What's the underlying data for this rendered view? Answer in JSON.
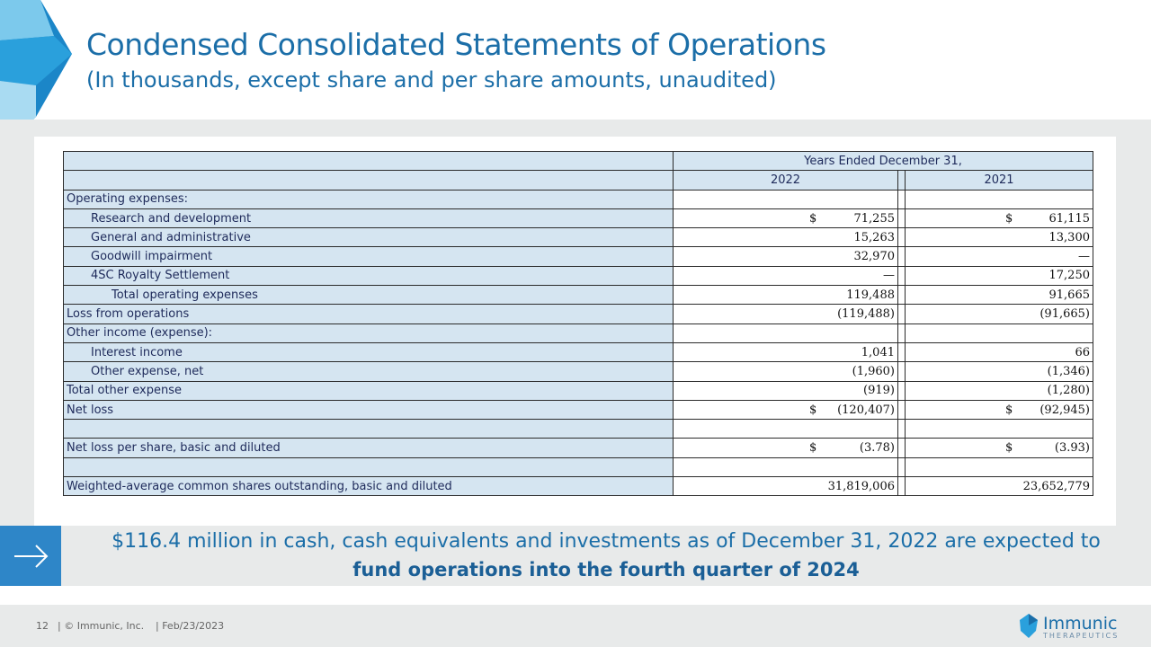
{
  "header": {
    "title": "Condensed Consolidated Statements of Operations",
    "subtitle": "(In thousands, except share and per share amounts, unaudited)"
  },
  "table": {
    "period_header": "Years Ended December 31,",
    "columns": [
      "2022",
      "2021"
    ],
    "rows": [
      {
        "label": "Operating expenses:"
      },
      {
        "label": "Research and development",
        "values": [
          {
            "currency": "$",
            "amount": "71,255"
          },
          {
            "currency": "$",
            "amount": "61,115"
          }
        ]
      },
      {
        "label": "General and administrative",
        "values": [
          {
            "amount": "15,263"
          },
          {
            "amount": "13,300"
          }
        ]
      },
      {
        "label": "Goodwill impairment",
        "values": [
          {
            "amount": "32,970"
          },
          {
            "amount": "—"
          }
        ]
      },
      {
        "label": "4SC Royalty Settlement",
        "values": [
          {
            "amount": "—"
          },
          {
            "amount": "17,250"
          }
        ]
      },
      {
        "label": "Total operating expenses",
        "values": [
          {
            "amount": "119,488"
          },
          {
            "amount": "91,665"
          }
        ]
      },
      {
        "label": "Loss from operations",
        "values": [
          {
            "amount": "(119,488)"
          },
          {
            "amount": "(91,665)"
          }
        ]
      },
      {
        "label": "Other income (expense):"
      },
      {
        "label": "Interest income",
        "values": [
          {
            "amount": "1,041"
          },
          {
            "amount": "66"
          }
        ]
      },
      {
        "label": "Other expense, net",
        "values": [
          {
            "amount": "(1,960)"
          },
          {
            "amount": "(1,346)"
          }
        ]
      },
      {
        "label": "Total other expense",
        "values": [
          {
            "amount": "(919)"
          },
          {
            "amount": "(1,280)"
          }
        ]
      },
      {
        "label": "Net loss",
        "values": [
          {
            "currency": "$",
            "amount": "(120,407)"
          },
          {
            "currency": "$",
            "amount": "(92,945)"
          }
        ]
      },
      {
        "label": "Net loss per share, basic and diluted",
        "values": [
          {
            "currency": "$",
            "amount": "(3.78)"
          },
          {
            "currency": "$",
            "amount": "(3.93)"
          }
        ]
      },
      {
        "label": "Weighted-average common shares outstanding, basic and diluted",
        "values": [
          {
            "amount": "31,819,006"
          },
          {
            "amount": "23,652,779"
          }
        ]
      }
    ]
  },
  "callout": {
    "line1": "$116.4 million in cash, cash equivalents and investments as of December 31, 2022 are expected to",
    "line2": "fund operations into the fourth quarter of 2024"
  },
  "footer": {
    "page": "12",
    "company": "| © Immunic, Inc.",
    "date": "| Feb/23/2023"
  },
  "logo": {
    "name": "Immunic",
    "tagline": "THERAPEUTICS"
  }
}
